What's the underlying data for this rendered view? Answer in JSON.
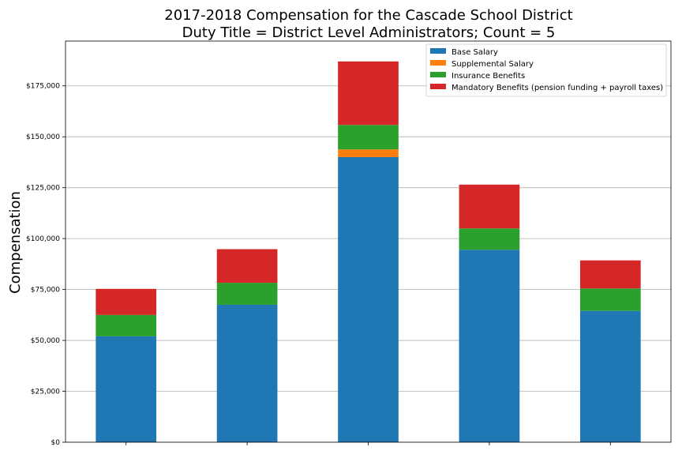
{
  "chart_data": {
    "type": "bar",
    "stacked": true,
    "title": "2017-2018 Compensation for the Cascade School District",
    "subtitle": "Duty Title = District Level Administrators; Count = 5",
    "xlabel": "",
    "ylabel": "Compensation",
    "ylim": [
      0,
      197000
    ],
    "yticks": [
      0,
      25000,
      50000,
      75000,
      100000,
      125000,
      150000,
      175000
    ],
    "ytick_labels": [
      "$0",
      "$25,000",
      "$50,000",
      "$75,000",
      "$100,000",
      "$125,000",
      "$150,000",
      "$175,000"
    ],
    "grid": "horizontal",
    "legend_position": "top-right",
    "categories": [
      "",
      "",
      "",
      "",
      ""
    ],
    "series": [
      {
        "name": "Base Salary",
        "color": "#1f77b4",
        "values": [
          52000,
          67500,
          140000,
          94500,
          64500
        ]
      },
      {
        "name": "Supplemental Salary",
        "color": "#ff7f0e",
        "values": [
          0,
          0,
          3800,
          0,
          0
        ]
      },
      {
        "name": "Insurance Benefits",
        "color": "#2ca02c",
        "values": [
          10500,
          10800,
          12000,
          10500,
          11000
        ]
      },
      {
        "name": "Mandatory Benefits (pension funding + payroll taxes)",
        "color": "#d62728",
        "values": [
          12800,
          16500,
          31200,
          21500,
          13800
        ]
      }
    ]
  }
}
